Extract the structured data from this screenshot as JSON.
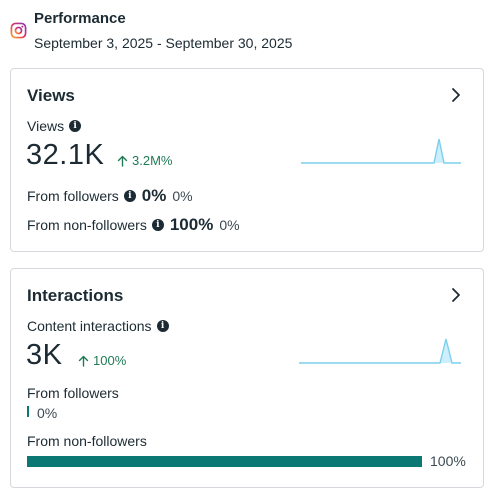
{
  "header": {
    "title": "Performance",
    "date_range": "September 3, 2025 - September 30, 2025",
    "icon": "instagram-icon"
  },
  "views_card": {
    "title": "Views",
    "metric_label": "Views",
    "value": "32.1K",
    "delta": "3.2M%",
    "followers_label": "From followers",
    "followers_pct": "0%",
    "followers_change": "0%",
    "non_followers_label": "From non-followers",
    "non_followers_pct": "100%",
    "non_followers_change": "0%"
  },
  "interactions_card": {
    "title": "Interactions",
    "metric_label": "Content interactions",
    "value": "3K",
    "delta": "100%",
    "followers_label": "From followers",
    "followers_pct": "0%",
    "followers_share": 0,
    "non_followers_label": "From non-followers",
    "non_followers_pct": "100%",
    "non_followers_share": 1.0
  },
  "colors": {
    "accent_teal": "#0b7874",
    "delta_green": "#1f7a56",
    "sparkline": "#7dcfee",
    "sparkline_fill": "#cdeefb"
  }
}
